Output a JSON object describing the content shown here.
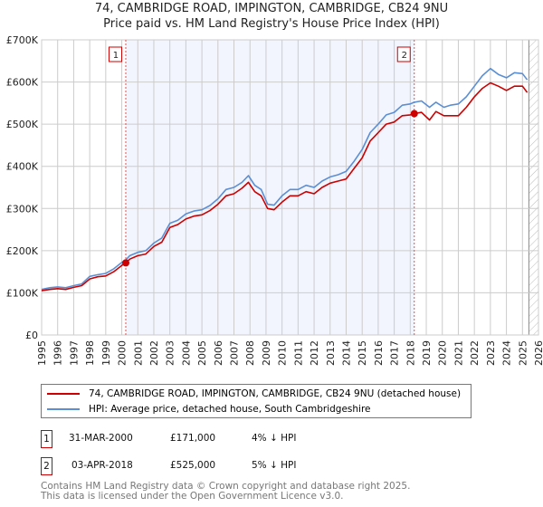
{
  "chart_data": {
    "type": "line",
    "title": "74, CAMBRIDGE ROAD, IMPINGTON, CAMBRIDGE, CB24 9NU",
    "subtitle": "Price paid vs. HM Land Registry's House Price Index (HPI)",
    "xlim": [
      1995,
      2026
    ],
    "ylim": [
      0,
      700000
    ],
    "y_ticks": [
      {
        "v": 0,
        "label": "£0"
      },
      {
        "v": 100000,
        "label": "£100K"
      },
      {
        "v": 200000,
        "label": "£200K"
      },
      {
        "v": 300000,
        "label": "£300K"
      },
      {
        "v": 400000,
        "label": "£400K"
      },
      {
        "v": 500000,
        "label": "£500K"
      },
      {
        "v": 600000,
        "label": "£600K"
      },
      {
        "v": 700000,
        "label": "£700K"
      }
    ],
    "x_ticks": [
      "1995",
      "1996",
      "1997",
      "1998",
      "1999",
      "2000",
      "2001",
      "2002",
      "2003",
      "2004",
      "2005",
      "2006",
      "2007",
      "2008",
      "2009",
      "2010",
      "2011",
      "2012",
      "2013",
      "2014",
      "2015",
      "2016",
      "2017",
      "2018",
      "2019",
      "2020",
      "2021",
      "2022",
      "2023",
      "2024",
      "2025",
      "2026"
    ],
    "grid": true,
    "shaded_range": [
      2000.25,
      2018.25
    ],
    "hatched_from": 2025.4,
    "series": [
      {
        "name": "74, CAMBRIDGE ROAD, IMPINGTON, CAMBRIDGE, CB24 9NU (detached house)",
        "color": "#cc0000",
        "x": [
          1995,
          1995.5,
          1996,
          1996.5,
          1997,
          1997.5,
          1998,
          1998.5,
          1999,
          1999.5,
          2000,
          2000.25,
          2000.5,
          2001,
          2001.5,
          2002,
          2002.5,
          2003,
          2003.5,
          2004,
          2004.5,
          2005,
          2005.5,
          2006,
          2006.5,
          2007,
          2007.5,
          2007.9,
          2008.3,
          2008.7,
          2009.1,
          2009.5,
          2010,
          2010.5,
          2011,
          2011.5,
          2012,
          2012.5,
          2013,
          2013.5,
          2014,
          2014.5,
          2015,
          2015.5,
          2016,
          2016.5,
          2017,
          2017.5,
          2018,
          2018.25,
          2018.7,
          2019.2,
          2019.6,
          2020.1,
          2020.5,
          2021,
          2021.5,
          2022,
          2022.5,
          2023,
          2023.5,
          2024,
          2024.5,
          2025,
          2025.3
        ],
        "y": [
          105,
          108,
          110,
          108,
          113,
          117,
          133,
          138,
          140,
          150,
          165,
          171,
          180,
          188,
          192,
          210,
          220,
          255,
          262,
          275,
          282,
          285,
          295,
          310,
          330,
          335,
          348,
          362,
          340,
          330,
          300,
          297,
          315,
          330,
          330,
          340,
          335,
          350,
          360,
          365,
          370,
          395,
          420,
          460,
          480,
          500,
          505,
          520,
          522,
          525,
          528,
          510,
          530,
          520,
          520,
          520,
          540,
          565,
          585,
          598,
          590,
          580,
          590,
          590,
          575
        ]
      },
      {
        "name": "HPI: Average price, detached house, South Cambridgeshire",
        "color": "#5b8fd4",
        "x": [
          1995,
          1995.5,
          1996,
          1996.5,
          1997,
          1997.5,
          1998,
          1998.5,
          1999,
          1999.5,
          2000,
          2000.25,
          2000.5,
          2001,
          2001.5,
          2002,
          2002.5,
          2003,
          2003.5,
          2004,
          2004.5,
          2005,
          2005.5,
          2006,
          2006.5,
          2007,
          2007.5,
          2007.9,
          2008.3,
          2008.7,
          2009.1,
          2009.5,
          2010,
          2010.5,
          2011,
          2011.5,
          2012,
          2012.5,
          2013,
          2013.5,
          2014,
          2014.5,
          2015,
          2015.5,
          2016,
          2016.5,
          2017,
          2017.5,
          2018,
          2018.25,
          2018.7,
          2019.2,
          2019.6,
          2020.1,
          2020.5,
          2021,
          2021.5,
          2022,
          2022.5,
          2023,
          2023.5,
          2024,
          2024.5,
          2025,
          2025.3
        ],
        "y": [
          108,
          112,
          114,
          112,
          117,
          121,
          139,
          143,
          146,
          157,
          172,
          178,
          188,
          196,
          200,
          218,
          230,
          265,
          272,
          287,
          294,
          297,
          307,
          323,
          345,
          350,
          362,
          378,
          355,
          345,
          310,
          308,
          330,
          345,
          345,
          355,
          350,
          365,
          375,
          380,
          388,
          412,
          440,
          480,
          500,
          522,
          528,
          545,
          548,
          552,
          555,
          540,
          552,
          540,
          545,
          548,
          565,
          590,
          615,
          632,
          618,
          610,
          622,
          620,
          605
        ]
      }
    ],
    "markers": [
      {
        "label": "1",
        "x": 2000.25,
        "y": 171000
      },
      {
        "label": "2",
        "x": 2018.25,
        "y": 525000
      }
    ]
  },
  "legend": {
    "property": "74, CAMBRIDGE ROAD, IMPINGTON, CAMBRIDGE, CB24 9NU (detached house)",
    "hpi": "HPI: Average price, detached house, South Cambridgeshire"
  },
  "transactions": [
    {
      "num": "1",
      "date": "31-MAR-2000",
      "price": "£171,000",
      "diff": "4% ↓ HPI"
    },
    {
      "num": "2",
      "date": "03-APR-2018",
      "price": "£525,000",
      "diff": "5% ↓ HPI"
    }
  ],
  "footer": {
    "line1": "Contains HM Land Registry data © Crown copyright and database right 2025.",
    "line2": "This data is licensed under the Open Government Licence v3.0."
  }
}
